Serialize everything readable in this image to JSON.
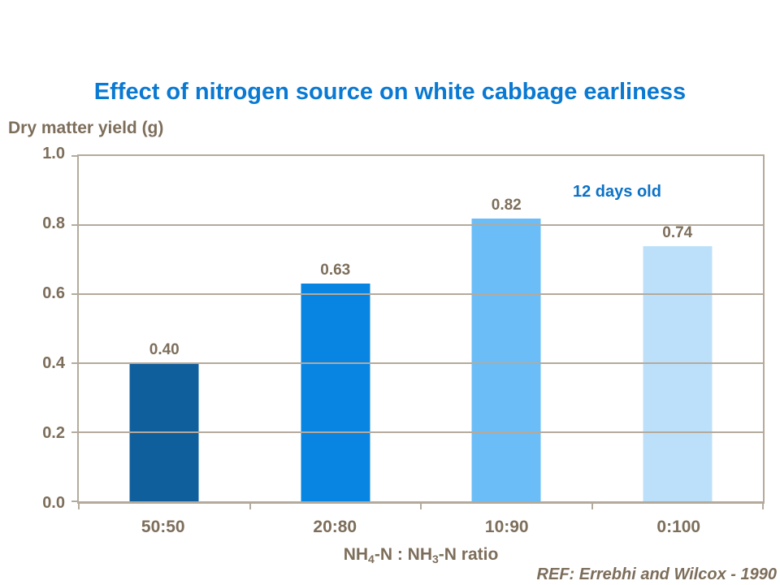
{
  "title": "Effect of nitrogen source on white cabbage earliness",
  "annotation": "12 days old",
  "reference": "REF: Errebhi and Wilcox - 1990",
  "colors": {
    "title_blue": "#0A79D2",
    "annotation_blue": "#0B72C6",
    "text_brown": "#7D6E5B",
    "axis_taupe": "#B4AA9C",
    "background": "#FFFFFF"
  },
  "chart_data": {
    "type": "bar",
    "title": "Effect of nitrogen source on white cabbage earliness",
    "ylabel": "Dry matter yield (g)",
    "xlabel": "NH4-N : NH3-N ratio",
    "xlabel_parts": {
      "a": "NH",
      "s1": "4",
      "b": "-N : NH",
      "s2": "3",
      "c": "-N ratio"
    },
    "categories": [
      "50:50",
      "20:80",
      "10:90",
      "0:100"
    ],
    "values": [
      0.4,
      0.63,
      0.82,
      0.74
    ],
    "value_labels": [
      "0.40",
      "0.63",
      "0.82",
      "0.74"
    ],
    "bar_colors": [
      "#0F5F9D",
      "#0884E2",
      "#6BBDF8",
      "#BDE0FA"
    ],
    "ylim": [
      0.0,
      1.0
    ],
    "yticks": [
      "1.0",
      "0.8",
      "0.6",
      "0.4",
      "0.2",
      "0.0"
    ],
    "grid": true,
    "legend": false,
    "annotation": "12 days old"
  }
}
